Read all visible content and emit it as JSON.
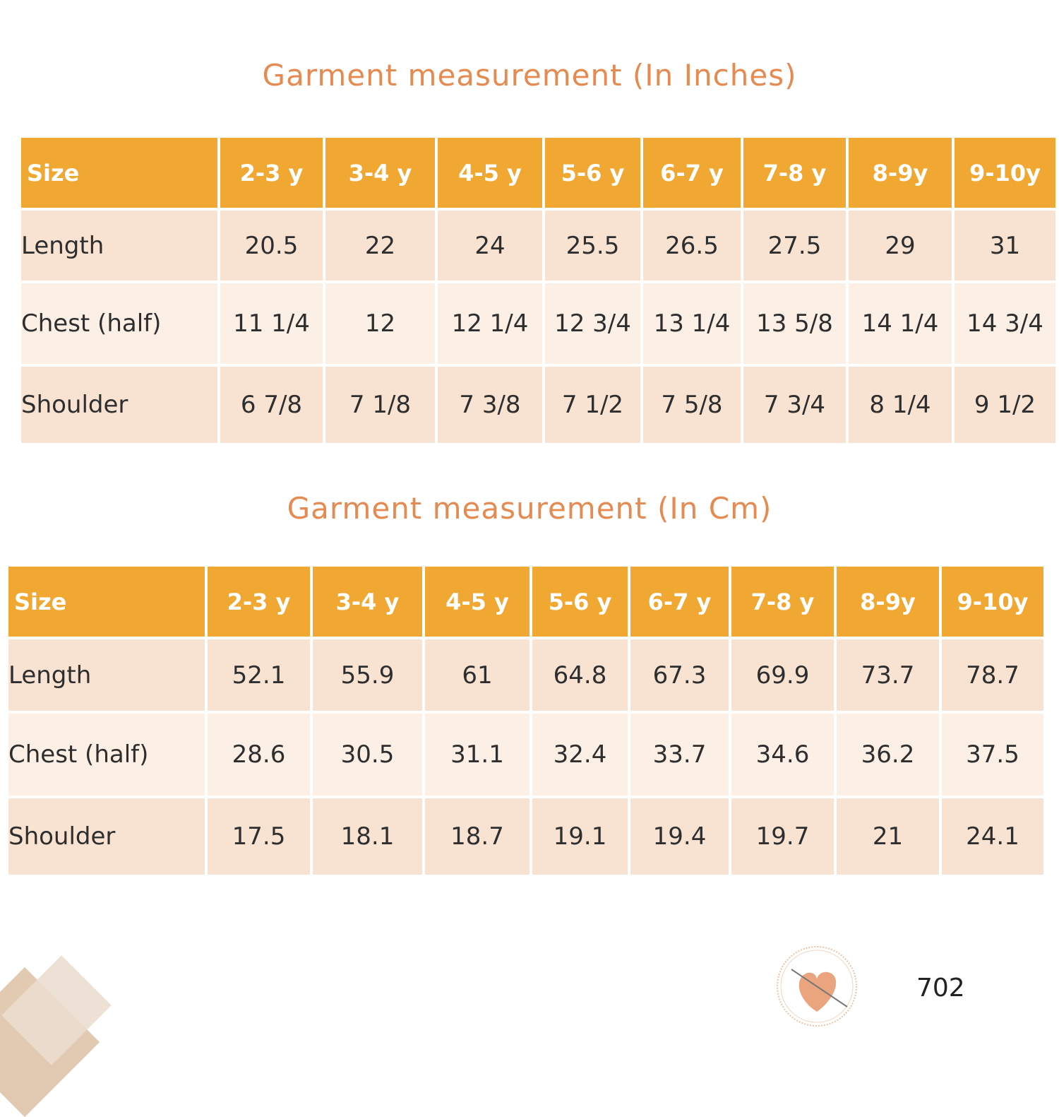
{
  "tables": [
    {
      "title": "Garment measurement (In Inches)",
      "header": [
        "Size",
        "2-3 y",
        "3-4 y",
        "4-5 y",
        "5-6 y",
        "6-7 y",
        "7-8 y",
        "8-9y",
        "9-10y"
      ],
      "rows": [
        [
          "Length",
          "20.5",
          "22",
          "24",
          "25.5",
          "26.5",
          "27.5",
          "29",
          "31"
        ],
        [
          "Chest (half)",
          "11 1/4",
          "12",
          "12 1/4",
          "12 3/4",
          "13 1/4",
          "13 5/8",
          "14 1/4",
          "14 3/4"
        ],
        [
          "Shoulder",
          "6 7/8",
          "7 1/8",
          "7 3/8",
          "7 1/2",
          "7 5/8",
          "7 3/4",
          "8 1/4",
          "9 1/2"
        ]
      ]
    },
    {
      "title": "Garment measurement (In Cm)",
      "header": [
        "Size",
        "2-3 y",
        "3-4 y",
        "4-5 y",
        "5-6 y",
        "6-7 y",
        "7-8 y",
        "8-9y",
        "9-10y"
      ],
      "rows": [
        [
          "Length",
          "52.1",
          "55.9",
          "61",
          "64.8",
          "67.3",
          "69.9",
          "73.7",
          "78.7"
        ],
        [
          "Chest (half)",
          "28.6",
          "30.5",
          "31.1",
          "32.4",
          "33.7",
          "34.6",
          "36.2",
          "37.5"
        ],
        [
          "Shoulder",
          "17.5",
          "18.1",
          "18.7",
          "19.1",
          "19.4",
          "19.7",
          "21",
          "24.1"
        ]
      ]
    }
  ],
  "footer": {
    "page_number": "702",
    "logo_icon": "heart-stamp-logo"
  },
  "colors": {
    "header": "#F0A833",
    "title": "#E58A50",
    "row_dark": "#F8E3D3",
    "row_light": "#FBEFE6"
  }
}
